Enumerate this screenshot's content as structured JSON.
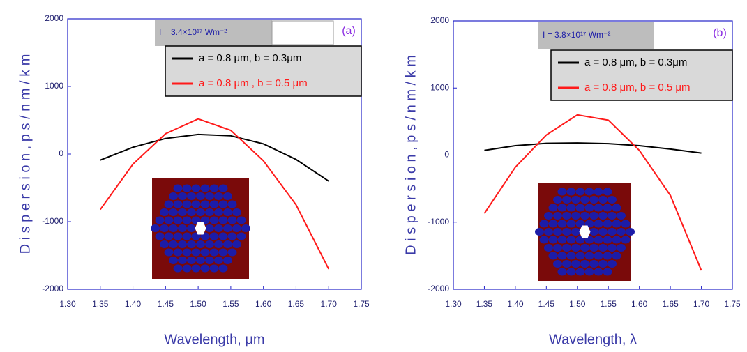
{
  "chart_data": [
    {
      "type": "line",
      "panel_label": "(a)",
      "annotation": "I = 3.4×10¹⁷ Wm⁻²",
      "x_label": "Wavelength, μm",
      "y_label": "D i s p e r s i o n ,  p s / n m / k m",
      "x": [
        1.35,
        1.4,
        1.45,
        1.5,
        1.55,
        1.6,
        1.65,
        1.7
      ],
      "series": [
        {
          "name": "a = 0.8 μm, b = 0.3μm",
          "color": "#000000",
          "values": [
            -90,
            100,
            230,
            290,
            270,
            150,
            -80,
            -400
          ]
        },
        {
          "name": "a = 0.8 μm , b = 0.5 μm",
          "color": "#ff1a1a",
          "values": [
            -820,
            -150,
            300,
            520,
            350,
            -100,
            -750,
            -1700
          ]
        }
      ],
      "xlim": [
        1.3,
        1.75
      ],
      "xticks": [
        {
          "value": 1.3,
          "label": "1.30"
        },
        1.35,
        {
          "value": 1.4,
          "label": "1.40"
        },
        1.45,
        {
          "value": 1.5,
          "label": "1.50"
        },
        1.55,
        {
          "value": 1.6,
          "label": "1.60"
        },
        1.65,
        {
          "value": 1.7,
          "label": "1.70"
        },
        1.75
      ],
      "ylim": [
        -2000,
        2000
      ],
      "yticks": [
        -2000,
        -1000,
        0,
        1000,
        2000
      ]
    },
    {
      "type": "line",
      "panel_label": "(b)",
      "annotation": "I = 3.8×10¹⁷ Wm⁻²",
      "x_label": "Wavelength, λ",
      "y_label": "D i s p e r s i o n ,  p s / n m / k m",
      "x": [
        1.35,
        1.4,
        1.45,
        1.5,
        1.55,
        1.6,
        1.65,
        1.7
      ],
      "series": [
        {
          "name": "a = 0.8 μm, b = 0.3μm",
          "color": "#000000",
          "values": [
            70,
            140,
            175,
            180,
            170,
            140,
            90,
            30
          ]
        },
        {
          "name": "a = 0.8 μm, b = 0.5 μm",
          "color": "#ff1a1a",
          "values": [
            -870,
            -180,
            300,
            600,
            520,
            70,
            -600,
            -1720
          ]
        }
      ],
      "xlim": [
        1.3,
        1.75
      ],
      "xticks": [
        {
          "value": 1.3,
          "label": "1.30"
        },
        1.35,
        {
          "value": 1.4,
          "label": "1.40"
        },
        1.45,
        {
          "value": 1.5,
          "label": "1.50"
        },
        1.55,
        {
          "value": 1.6,
          "label": "1.60"
        },
        1.65,
        {
          "value": 1.7,
          "label": "1.70"
        },
        1.75
      ],
      "ylim": [
        -2000,
        2000
      ],
      "yticks": [
        -2000,
        -1000,
        0,
        1000,
        2000
      ]
    }
  ]
}
